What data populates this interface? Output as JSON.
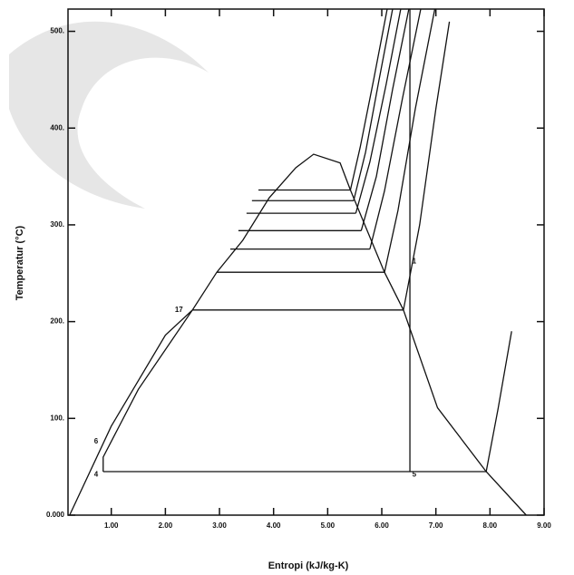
{
  "chart_data": {
    "type": "line",
    "x_label": "Entropi (kJ/kg-K)",
    "y_label": "Temperatur (°C)",
    "color": "#111111",
    "xlim": [
      0.2,
      9.0
    ],
    "ylim": [
      0,
      523
    ],
    "xticks": [
      {
        "value": 1,
        "label": "1.00"
      },
      {
        "value": 2,
        "label": "2.00"
      },
      {
        "value": 3,
        "label": "3.00"
      },
      {
        "value": 4,
        "label": "4.00"
      },
      {
        "value": 5,
        "label": "5.00"
      },
      {
        "value": 6,
        "label": "6.00"
      },
      {
        "value": 7,
        "label": "7.00"
      },
      {
        "value": 8,
        "label": "8.00"
      },
      {
        "value": 9,
        "label": "9.00"
      }
    ],
    "yticks": [
      {
        "value": 0,
        "label": "0.000"
      },
      {
        "value": 100,
        "label": "100."
      },
      {
        "value": 200,
        "label": "200."
      },
      {
        "value": 300,
        "label": "300."
      },
      {
        "value": 400,
        "label": "400."
      },
      {
        "value": 500,
        "label": "500."
      }
    ],
    "series": [
      {
        "x": [
          0.23,
          1.0,
          2.0,
          2.5,
          2.95,
          3.43,
          3.92,
          4.41,
          4.74,
          5.23,
          5.42,
          5.56,
          6.05,
          6.4,
          7.03,
          7.93,
          8.67
        ],
        "values": [
          0,
          92,
          186,
          212,
          251,
          284,
          328,
          359,
          373,
          364,
          336,
          317,
          251,
          212,
          111,
          45,
          0
        ]
      },
      {
        "x": [
          3.72,
          5.42
        ],
        "values": [
          336,
          336
        ]
      },
      {
        "x": [
          3.6,
          5.48
        ],
        "values": [
          325,
          325
        ]
      },
      {
        "x": [
          3.5,
          5.52
        ],
        "values": [
          312,
          312
        ]
      },
      {
        "x": [
          3.35,
          5.62
        ],
        "values": [
          294,
          294
        ]
      },
      {
        "x": [
          3.2,
          5.78
        ],
        "values": [
          275,
          275
        ]
      },
      {
        "x": [
          2.95,
          6.05
        ],
        "values": [
          251,
          251
        ]
      },
      {
        "x": [
          2.5,
          6.4
        ],
        "values": [
          212,
          212
        ]
      },
      {
        "x": [
          0.85,
          7.93
        ],
        "values": [
          45,
          45
        ]
      },
      {
        "x": [
          0.85,
          0.85,
          1.5,
          2.5
        ],
        "values": [
          45,
          60,
          130,
          212
        ]
      },
      {
        "x": [
          6.52,
          6.52
        ],
        "values": [
          45,
          523
        ]
      },
      {
        "x": [
          5.42,
          5.6,
          5.85,
          6.1
        ],
        "values": [
          336,
          380,
          450,
          523
        ]
      },
      {
        "x": [
          5.48,
          5.7,
          5.95,
          6.2
        ],
        "values": [
          325,
          375,
          450,
          523
        ]
      },
      {
        "x": [
          5.52,
          5.78,
          6.08,
          6.35
        ],
        "values": [
          312,
          365,
          445,
          523
        ]
      },
      {
        "x": [
          5.62,
          5.9,
          6.2,
          6.5
        ],
        "values": [
          294,
          350,
          440,
          523
        ]
      },
      {
        "x": [
          5.78,
          6.05,
          6.38,
          6.72
        ],
        "values": [
          275,
          335,
          430,
          523
        ]
      },
      {
        "x": [
          6.05,
          6.3,
          6.62,
          6.98
        ],
        "values": [
          251,
          315,
          420,
          523
        ]
      },
      {
        "x": [
          6.4,
          6.7,
          7.0,
          7.25
        ],
        "values": [
          212,
          300,
          420,
          510
        ]
      },
      {
        "x": [
          7.93,
          8.15,
          8.4
        ],
        "values": [
          45,
          110,
          190
        ]
      }
    ],
    "annotations": [
      {
        "text": "6",
        "x": 0.72,
        "y": 76
      },
      {
        "text": "4",
        "x": 0.72,
        "y": 42
      },
      {
        "text": "5",
        "x": 6.6,
        "y": 42
      },
      {
        "text": "17",
        "x": 2.25,
        "y": 212
      },
      {
        "text": "1",
        "x": 6.6,
        "y": 262
      }
    ]
  }
}
